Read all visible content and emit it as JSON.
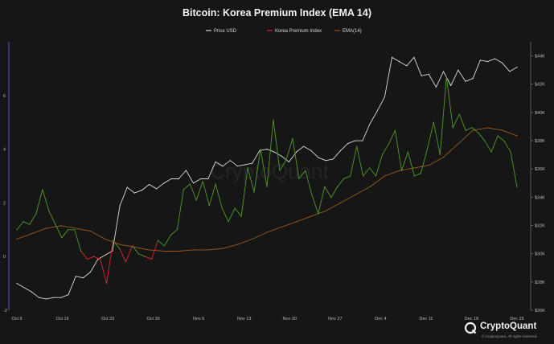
{
  "chart_data": {
    "type": "line",
    "title": "Bitcoin: Korea Premium Index (EMA 14)",
    "legend_position": "top-center",
    "grid": false,
    "x_tick_labels": [
      "Oct 9",
      "Oct 16",
      "Oct 23",
      "Oct 30",
      "Nov 6",
      "Nov 13",
      "Nov 20",
      "Nov 27",
      "Dec 4",
      "Dec 11",
      "Dec 18",
      "Dec 25"
    ],
    "x_start_label": "Oct 9",
    "x_end_label": "Dec 25",
    "left_axis": {
      "ticks": [
        -2,
        0,
        2,
        4,
        6
      ],
      "ylim": [
        -2,
        8
      ]
    },
    "right_axis": {
      "ticks": [
        "$26K",
        "$28K",
        "$30K",
        "$32K",
        "$34K",
        "$36K",
        "$38K",
        "$40K",
        "$42K",
        "$44K"
      ],
      "ylim": [
        26,
        45
      ]
    },
    "colors": {
      "price": "#d9d9d9",
      "premium_positive": "#4e9a26",
      "premium_negative": "#e0242f",
      "ema": "#9a5a1e",
      "left_axis": "#6d4fc9"
    },
    "series": [
      {
        "name": "Price USD",
        "axis": "right",
        "values": [
          27.9,
          27.6,
          27.3,
          26.9,
          26.8,
          26.9,
          26.9,
          27.1,
          28.4,
          28.3,
          28.7,
          29.6,
          29.9,
          30.2,
          33.4,
          34.7,
          34.3,
          34.5,
          34.9,
          34.6,
          35.0,
          35.3,
          35.3,
          35.9,
          35.0,
          35.3,
          35.3,
          36.5,
          36.2,
          36.6,
          36.2,
          36.3,
          36.4,
          37.3,
          37.4,
          37.2,
          36.9,
          36.5,
          37.2,
          37.6,
          37.3,
          36.8,
          36.6,
          36.7,
          37.3,
          37.8,
          38.0,
          38.0,
          39.2,
          40.1,
          41.1,
          43.9,
          43.6,
          43.3,
          43.9,
          42.6,
          42.7,
          41.8,
          42.9,
          41.9,
          43.0,
          42.2,
          42.4,
          43.7,
          43.6,
          43.8,
          43.5,
          42.9,
          43.2
        ]
      },
      {
        "name": "Korea Premium Index",
        "axis": "left",
        "values": [
          1.0,
          1.3,
          1.2,
          1.6,
          2.5,
          1.7,
          1.2,
          0.7,
          1.0,
          1.0,
          0.2,
          -0.1,
          0.0,
          -0.1,
          -1.0,
          0.6,
          0.3,
          -0.2,
          0.4,
          0.1,
          0.0,
          -0.1,
          0.6,
          0.4,
          0.8,
          1.0,
          2.5,
          2.7,
          2.1,
          2.8,
          1.9,
          2.7,
          1.8,
          1.3,
          1.8,
          1.5,
          3.3,
          2.4,
          4.0,
          2.6,
          5.1,
          3.2,
          3.6,
          4.4,
          2.9,
          3.2,
          2.3,
          1.6,
          2.6,
          2.2,
          2.6,
          2.9,
          3.0,
          4.1,
          3.0,
          3.3,
          3.0,
          3.8,
          4.2,
          4.7,
          3.2,
          3.9,
          3.0,
          3.1,
          4.0,
          5.0,
          3.8,
          6.7,
          4.8,
          5.3,
          4.7,
          4.8,
          4.6,
          4.3,
          3.9,
          4.5,
          4.3,
          3.9,
          2.6
        ]
      },
      {
        "name": "EMA(14)",
        "axis": "left",
        "values": [
          0.65,
          0.85,
          1.05,
          1.15,
          1.05,
          0.95,
          0.65,
          0.45,
          0.35,
          0.25,
          0.2,
          0.2,
          0.25,
          0.25,
          0.3,
          0.45,
          0.65,
          0.9,
          1.1,
          1.3,
          1.5,
          1.7,
          2.0,
          2.3,
          2.6,
          3.0,
          3.2,
          3.3,
          3.4,
          3.7,
          4.2,
          4.7,
          4.8,
          4.7,
          4.5
        ]
      }
    ]
  },
  "watermark": "CryptoQuant",
  "brand": {
    "name": "CryptoQuant",
    "note": "© CryptoQuant. All rights reserved."
  }
}
